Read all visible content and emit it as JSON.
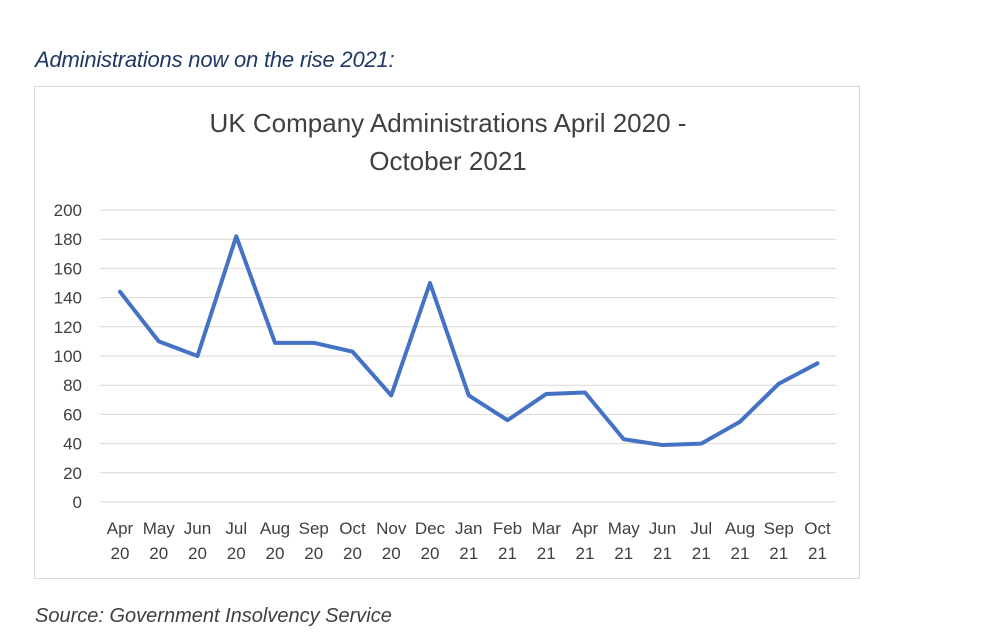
{
  "heading": "Administrations now on the rise 2021:",
  "source": "Source: Government Insolvency Service",
  "chart_data": {
    "type": "line",
    "title_lines": [
      "UK Company Administrations April 2020 -",
      "October 2021"
    ],
    "categories": [
      [
        "Apr",
        "20"
      ],
      [
        "May",
        "20"
      ],
      [
        "Jun",
        "20"
      ],
      [
        "Jul",
        "20"
      ],
      [
        "Aug",
        "20"
      ],
      [
        "Sep",
        "20"
      ],
      [
        "Oct",
        "20"
      ],
      [
        "Nov",
        "20"
      ],
      [
        "Dec",
        "20"
      ],
      [
        "Jan",
        "21"
      ],
      [
        "Feb",
        "21"
      ],
      [
        "Mar",
        "21"
      ],
      [
        "Apr",
        "21"
      ],
      [
        "May",
        "21"
      ],
      [
        "Jun",
        "21"
      ],
      [
        "Jul",
        "21"
      ],
      [
        "Aug",
        "21"
      ],
      [
        "Sep",
        "21"
      ],
      [
        "Oct",
        "21"
      ]
    ],
    "series": [
      {
        "name": "Administrations",
        "values": [
          144,
          110,
          100,
          182,
          109,
          109,
          103,
          73,
          150,
          73,
          56,
          74,
          75,
          43,
          39,
          40,
          55,
          81,
          95
        ]
      }
    ],
    "yticks": [
      "0",
      "20",
      "40",
      "60",
      "80",
      "100",
      "120",
      "140",
      "160",
      "180",
      "200"
    ],
    "ylim": [
      0,
      200
    ],
    "grid": true,
    "legend": "none",
    "line_color": "#4472c4",
    "grid_color": "#d9d9d9"
  }
}
